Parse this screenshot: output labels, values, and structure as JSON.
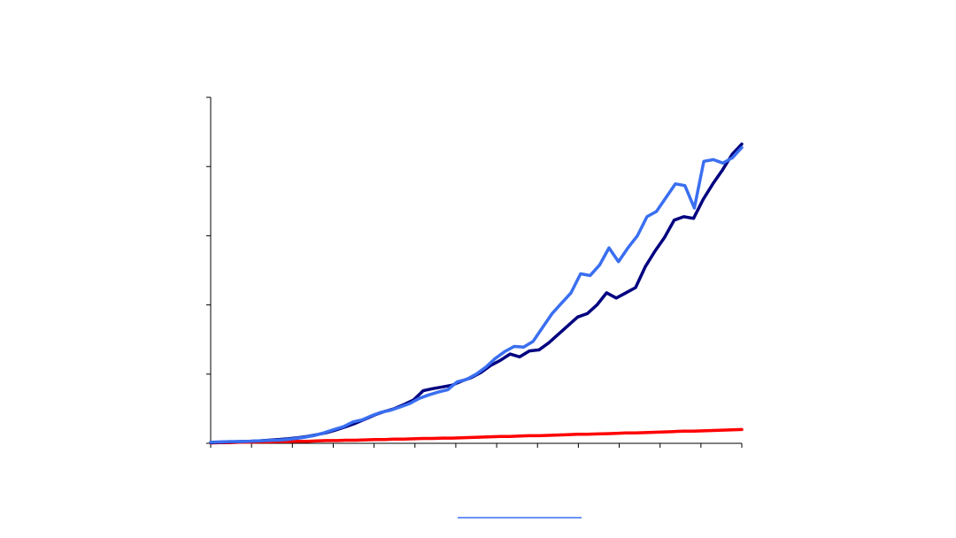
{
  "chart_data": {
    "type": "line",
    "title": "",
    "xlabel": "",
    "ylabel": "",
    "x_tick_count": 14,
    "y_ticks": 6,
    "grid": false,
    "xlim": [
      0,
      65
    ],
    "ylim": [
      0,
      100
    ],
    "series": [
      {
        "color": "#000080",
        "values": [
          0.2,
          0.3,
          0.4,
          0.5,
          0.6,
          0.7,
          0.9,
          1.1,
          1.3,
          1.6,
          2.0,
          2.5,
          3.1,
          3.9,
          4.8,
          5.8,
          7.0,
          8.2,
          9.2,
          10.0,
          11.2,
          12.5,
          15.2,
          15.8,
          16.3,
          16.8,
          18.0,
          19.0,
          20.5,
          22.5,
          24.0,
          25.8,
          25.0,
          26.7,
          27.0,
          29.0,
          31.5,
          34.0,
          36.5,
          37.5,
          40.0,
          43.5,
          42.0,
          43.5,
          45.0,
          51.0,
          55.5,
          59.5,
          64.5,
          65.5,
          65.0,
          70.5,
          75.0,
          79.0,
          83.5,
          86.5
        ]
      },
      {
        "color": "#3a6ff0",
        "values": [
          0.3,
          0.4,
          0.5,
          0.5,
          0.6,
          0.7,
          0.8,
          0.9,
          1.1,
          1.4,
          1.8,
          2.3,
          3.1,
          4.0,
          4.8,
          6.2,
          6.8,
          8.0,
          9.0,
          9.6,
          10.5,
          11.5,
          13.0,
          14.0,
          14.8,
          15.5,
          17.8,
          18.5,
          20.0,
          22.0,
          24.5,
          26.5,
          28.0,
          27.8,
          29.5,
          33.5,
          37.5,
          40.5,
          43.5,
          49.0,
          48.5,
          51.5,
          56.5,
          52.5,
          56.5,
          60.0,
          65.5,
          67.0,
          71.0,
          75.0,
          74.5,
          68.0,
          81.5,
          82.0,
          81.0,
          82.5,
          85.5
        ]
      },
      {
        "color": "#ff0000",
        "values": [
          0.1,
          0.2,
          0.2,
          0.3,
          0.3,
          0.4,
          0.4,
          0.5,
          0.5,
          0.6,
          0.6,
          0.7,
          0.8,
          0.8,
          0.9,
          0.9,
          1.0,
          1.1,
          1.1,
          1.2,
          1.2,
          1.3,
          1.4,
          1.4,
          1.5,
          1.5,
          1.6,
          1.7,
          1.8,
          1.9,
          2.0,
          2.0,
          2.1,
          2.2,
          2.2,
          2.3,
          2.4,
          2.5,
          2.6,
          2.6,
          2.7,
          2.8,
          2.9,
          3.0,
          3.0,
          3.1,
          3.2,
          3.3,
          3.4,
          3.5,
          3.5,
          3.6,
          3.7,
          3.8,
          3.9,
          4.0
        ]
      }
    ],
    "legend_position": "bottom",
    "legend_visible_entries": [
      {
        "color": "#3a6ff0"
      }
    ]
  }
}
